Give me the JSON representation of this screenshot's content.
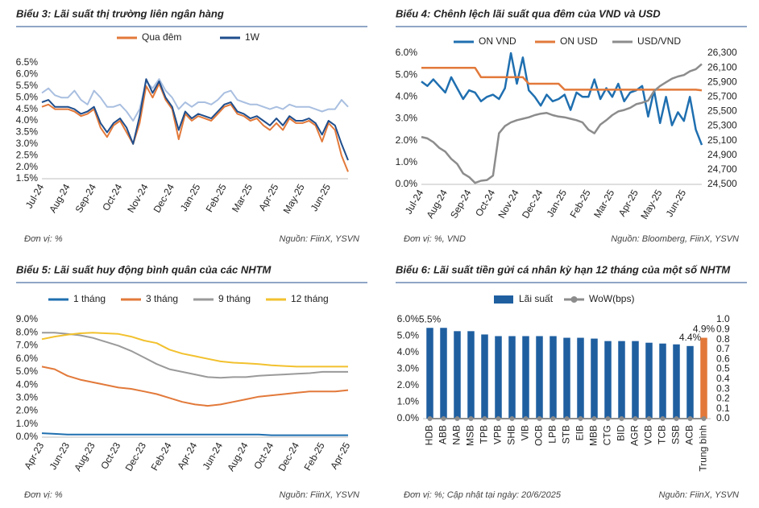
{
  "chart_data": [
    {
      "type": "line",
      "title": "Biểu 3: Lãi suất thị trường liên ngân hàng",
      "unit": "Đơn vị: %",
      "source": "Nguồn: FiinX, YSVN",
      "categories": [
        "Jul-24",
        null,
        null,
        null,
        "Aug-24",
        null,
        null,
        null,
        "Sep-24",
        null,
        null,
        null,
        "Oct-24",
        null,
        null,
        null,
        "Nov-24",
        null,
        null,
        null,
        "Dec-24",
        null,
        null,
        null,
        "Jan-25",
        null,
        null,
        null,
        "Feb-25",
        null,
        null,
        null,
        "Mar-25",
        null,
        null,
        null,
        "Apr-25",
        null,
        null,
        null,
        "May-25",
        null,
        null,
        null,
        "Jun-25",
        null,
        null,
        null
      ],
      "series": [
        {
          "color": "#a9bfe0",
          "values": [
            5.2,
            5.4,
            5.1,
            5.0,
            5.0,
            5.3,
            4.9,
            4.7,
            5.3,
            5.0,
            4.6,
            4.6,
            4.7,
            4.4,
            4.0,
            4.5,
            5.7,
            5.4,
            5.8,
            5.3,
            5.0,
            4.5,
            4.8,
            4.6,
            4.8,
            4.8,
            4.7,
            4.9,
            5.2,
            5.3,
            4.9,
            4.8,
            4.7,
            4.7,
            4.6,
            4.5,
            4.6,
            4.5,
            4.7,
            4.6,
            4.6,
            4.6,
            4.5,
            4.4,
            4.5,
            4.5,
            4.9,
            4.6
          ]
        },
        {
          "name": "Qua đêm",
          "color": "#e2793a",
          "values": [
            4.6,
            4.7,
            4.5,
            4.5,
            4.5,
            4.4,
            4.2,
            4.3,
            4.5,
            3.7,
            3.3,
            3.8,
            4.0,
            3.5,
            3.0,
            3.9,
            5.5,
            5.0,
            5.6,
            4.9,
            4.5,
            3.2,
            4.3,
            4.0,
            4.2,
            4.1,
            4.0,
            4.3,
            4.6,
            4.7,
            4.3,
            4.2,
            4.0,
            4.1,
            3.8,
            3.6,
            3.9,
            3.6,
            4.1,
            3.9,
            3.9,
            4.0,
            3.8,
            3.1,
            3.9,
            3.6,
            2.5,
            1.8
          ]
        },
        {
          "name": "1W",
          "color": "#1f4e8c",
          "values": [
            4.8,
            4.9,
            4.6,
            4.6,
            4.6,
            4.5,
            4.3,
            4.4,
            4.6,
            3.9,
            3.5,
            3.9,
            4.1,
            3.7,
            3.0,
            4.2,
            5.8,
            5.2,
            5.7,
            5.0,
            4.6,
            3.6,
            4.4,
            4.1,
            4.3,
            4.2,
            4.1,
            4.4,
            4.7,
            4.8,
            4.4,
            4.3,
            4.1,
            4.2,
            4.0,
            3.8,
            4.1,
            3.8,
            4.2,
            4.0,
            4.0,
            4.1,
            3.9,
            3.4,
            4.0,
            3.8,
            3.0,
            2.3
          ]
        }
      ],
      "ylim": [
        1.5,
        6.5
      ],
      "yticks": [
        {
          "value": 1.5,
          "label": "1.5%"
        },
        {
          "value": 2,
          "label": "2.0%"
        },
        {
          "value": 2.5,
          "label": "2.5%"
        },
        {
          "value": 3,
          "label": "3.0%"
        },
        {
          "value": 3.5,
          "label": "3.5%"
        },
        {
          "value": 4,
          "label": "4.0%"
        },
        {
          "value": 4.5,
          "label": "4.5%"
        },
        {
          "value": 5,
          "label": "5.0%"
        },
        {
          "value": 5.5,
          "label": "5.5%"
        },
        {
          "value": 6,
          "label": "6.0%"
        },
        {
          "value": 6.5,
          "label": "6.5%"
        }
      ]
    },
    {
      "type": "line",
      "title": "Biểu 4: Chênh lệch lãi suất qua đêm của VND và USD",
      "unit": "Đơn vị: %, VND",
      "source": "Nguồn: Bloomberg, FiinX, YSVN",
      "categories": [
        "Jul-24",
        null,
        null,
        null,
        "Aug-24",
        null,
        null,
        null,
        "Sep-24",
        null,
        null,
        null,
        "Oct-24",
        null,
        null,
        null,
        "Nov-24",
        null,
        null,
        null,
        "Dec-24",
        null,
        null,
        null,
        "Jan-25",
        null,
        null,
        null,
        "Feb-25",
        null,
        null,
        null,
        "Mar-25",
        null,
        null,
        null,
        "Apr-25",
        null,
        null,
        null,
        "May-25",
        null,
        null,
        null,
        "Jun-25",
        null,
        null,
        null
      ],
      "series": [
        {
          "name": "ON VND",
          "color": "#1f6fb0",
          "values": [
            4.7,
            4.5,
            4.8,
            4.5,
            4.2,
            4.9,
            4.4,
            3.9,
            4.3,
            4.2,
            3.8,
            4.0,
            4.1,
            3.9,
            4.4,
            6.0,
            4.6,
            5.8,
            4.3,
            4.0,
            3.6,
            4.1,
            3.8,
            3.9,
            4.1,
            3.4,
            4.2,
            4.0,
            4.0,
            4.8,
            3.9,
            4.4,
            4.0,
            4.6,
            3.8,
            4.2,
            4.3,
            4.5,
            3.1,
            4.3,
            2.8,
            4.0,
            2.7,
            3.3,
            2.9,
            4.0,
            2.5,
            1.8
          ]
        },
        {
          "name": "ON USD",
          "color": "#e2793a",
          "values": [
            5.33,
            5.33,
            5.33,
            5.33,
            5.33,
            5.33,
            5.33,
            5.33,
            5.33,
            5.33,
            4.9,
            4.9,
            4.9,
            4.9,
            4.9,
            4.9,
            4.9,
            4.9,
            4.6,
            4.6,
            4.6,
            4.6,
            4.6,
            4.6,
            4.33,
            4.33,
            4.33,
            4.33,
            4.33,
            4.33,
            4.33,
            4.33,
            4.33,
            4.33,
            4.33,
            4.33,
            4.33,
            4.33,
            4.33,
            4.33,
            4.33,
            4.33,
            4.33,
            4.33,
            4.33,
            4.33,
            4.33,
            4.3
          ]
        },
        {
          "name": "USD/VND",
          "color": "#8c8c8c",
          "axis": "y2",
          "values": [
            25150,
            25130,
            25080,
            25000,
            24950,
            24850,
            24780,
            24650,
            24600,
            24520,
            24550,
            24560,
            24620,
            25200,
            25300,
            25350,
            25380,
            25400,
            25420,
            25450,
            25470,
            25480,
            25450,
            25430,
            25420,
            25400,
            25380,
            25350,
            25250,
            25200,
            25320,
            25380,
            25450,
            25500,
            25520,
            25550,
            25600,
            25620,
            25650,
            25780,
            25850,
            25900,
            25950,
            25980,
            26000,
            26050,
            26080,
            26150
          ]
        }
      ],
      "ylim": [
        0,
        6
      ],
      "yticks": [
        {
          "value": 0,
          "label": "0.0%"
        },
        {
          "value": 1,
          "label": "1.0%"
        },
        {
          "value": 2,
          "label": "2.0%"
        },
        {
          "value": 3,
          "label": "3.0%"
        },
        {
          "value": 4,
          "label": "4.0%"
        },
        {
          "value": 5,
          "label": "5.0%"
        },
        {
          "value": 6,
          "label": "6.0%"
        }
      ],
      "y2lim": [
        24500,
        26300
      ],
      "y2ticks": [
        {
          "value": 24500,
          "label": "24,500"
        },
        {
          "value": 24700,
          "label": "24,700"
        },
        {
          "value": 24900,
          "label": "24,900"
        },
        {
          "value": 25100,
          "label": "25,100"
        },
        {
          "value": 25300,
          "label": "25,300"
        },
        {
          "value": 25500,
          "label": "25,500"
        },
        {
          "value": 25700,
          "label": "25,700"
        },
        {
          "value": 25900,
          "label": "25,900"
        },
        {
          "value": 26100,
          "label": "26,100"
        },
        {
          "value": 26300,
          "label": "26,300"
        }
      ]
    },
    {
      "type": "line",
      "title": "Biểu 5: Lãi suất huy động bình quân của các NHTM",
      "unit": "Đơn vị: %",
      "source": "Nguồn: FiinX, YSVN",
      "categories": [
        "Apr-23",
        null,
        "Jun-23",
        null,
        "Aug-23",
        null,
        "Oct-23",
        null,
        "Dec-23",
        null,
        "Feb-24",
        null,
        "Apr-24",
        null,
        "Jun-24",
        null,
        "Aug-24",
        null,
        "Oct-24",
        null,
        "Dec-24",
        null,
        "Feb-25",
        null,
        "Apr-25"
      ],
      "series": [
        {
          "name": "1 tháng",
          "color": "#1f6fb0",
          "values": [
            0.3,
            0.25,
            0.2,
            0.2,
            0.2,
            0.2,
            0.2,
            0.2,
            0.2,
            0.2,
            0.2,
            0.2,
            0.2,
            0.2,
            0.2,
            0.2,
            0.2,
            0.2,
            0.15,
            0.15,
            0.15,
            0.15,
            0.15,
            0.15,
            0.15
          ]
        },
        {
          "name": "3 tháng",
          "color": "#e2793a",
          "values": [
            5.4,
            5.2,
            4.7,
            4.4,
            4.2,
            4.0,
            3.8,
            3.7,
            3.5,
            3.3,
            3.0,
            2.7,
            2.5,
            2.4,
            2.5,
            2.7,
            2.9,
            3.1,
            3.2,
            3.3,
            3.4,
            3.5,
            3.5,
            3.5,
            3.6
          ]
        },
        {
          "name": "9 tháng",
          "color": "#9a9a9a",
          "values": [
            8.0,
            8.0,
            7.9,
            7.8,
            7.6,
            7.3,
            7.0,
            6.6,
            6.1,
            5.6,
            5.2,
            5.0,
            4.8,
            4.6,
            4.55,
            4.6,
            4.6,
            4.7,
            4.75,
            4.8,
            4.85,
            4.9,
            5.0,
            5.0,
            5.0
          ]
        },
        {
          "name": "12 tháng",
          "color": "#f2c12e",
          "values": [
            7.5,
            7.7,
            7.85,
            7.95,
            8.0,
            7.95,
            7.9,
            7.7,
            7.4,
            7.2,
            6.7,
            6.4,
            6.2,
            6.0,
            5.8,
            5.7,
            5.65,
            5.6,
            5.5,
            5.45,
            5.4,
            5.4,
            5.4,
            5.4,
            5.4
          ]
        }
      ],
      "ylim": [
        0,
        9
      ],
      "yticks": [
        {
          "value": 0,
          "label": "0.0%"
        },
        {
          "value": 1,
          "label": "1.0%"
        },
        {
          "value": 2,
          "label": "2.0%"
        },
        {
          "value": 3,
          "label": "3.0%"
        },
        {
          "value": 4,
          "label": "4.0%"
        },
        {
          "value": 5,
          "label": "5.0%"
        },
        {
          "value": 6,
          "label": "6.0%"
        },
        {
          "value": 7,
          "label": "7.0%"
        },
        {
          "value": 8,
          "label": "8.0%"
        },
        {
          "value": 9,
          "label": "9.0%"
        }
      ]
    },
    {
      "type": "bar",
      "title": "Biểu 6: Lãi suất tiền gửi cá nhân kỳ hạn 12 tháng của một số NHTM",
      "unit": "Đơn vị: %; Cập nhật tại ngày: 20/6/2025",
      "source": "Nguồn: FiinX, YSVN",
      "categories": [
        "HDB",
        "ABB",
        "NAB",
        "MSB",
        "TPB",
        "VPB",
        "SHB",
        "VIB",
        "OCB",
        "LPB",
        "STB",
        "EIB",
        "MBB",
        "CTG",
        "BID",
        "AGR",
        "VCB",
        "TCB",
        "SSB",
        "ACB",
        "Trung bình"
      ],
      "series": [
        {
          "name": "Lãi suất",
          "color": "#1f5fa0",
          "colors": [
            "#1f5fa0",
            "#1f5fa0",
            "#1f5fa0",
            "#1f5fa0",
            "#1f5fa0",
            "#1f5fa0",
            "#1f5fa0",
            "#1f5fa0",
            "#1f5fa0",
            "#1f5fa0",
            "#1f5fa0",
            "#1f5fa0",
            "#1f5fa0",
            "#1f5fa0",
            "#1f5fa0",
            "#1f5fa0",
            "#1f5fa0",
            "#1f5fa0",
            "#1f5fa0",
            "#1f5fa0",
            "#e2793a"
          ],
          "values": [
            5.5,
            5.5,
            5.3,
            5.3,
            5.1,
            5.0,
            5.0,
            5.0,
            5.0,
            5.0,
            4.9,
            4.9,
            4.85,
            4.7,
            4.7,
            4.7,
            4.6,
            4.55,
            4.5,
            4.4,
            4.9
          ],
          "value_labels": [
            "5.5%",
            null,
            null,
            null,
            null,
            null,
            null,
            null,
            null,
            null,
            null,
            null,
            null,
            null,
            null,
            null,
            null,
            null,
            null,
            "4.4%",
            "4.9%"
          ]
        },
        {
          "name": "WoW(bps)",
          "color": "#8c8c8c",
          "type": "line",
          "axis": "y2",
          "values": [
            0,
            0,
            0,
            0,
            0,
            0,
            0,
            0,
            0,
            0,
            0,
            0,
            0,
            0,
            0,
            0,
            0,
            0,
            0,
            0,
            0
          ]
        }
      ],
      "ylim": [
        0,
        6
      ],
      "yticks": [
        {
          "value": 0,
          "label": "0.0%"
        },
        {
          "value": 1,
          "label": "1.0%"
        },
        {
          "value": 2,
          "label": "2.0%"
        },
        {
          "value": 3,
          "label": "3.0%"
        },
        {
          "value": 4,
          "label": "4.0%"
        },
        {
          "value": 5,
          "label": "5.0%"
        },
        {
          "value": 6,
          "label": "6.0%"
        }
      ],
      "y2lim": [
        0,
        1
      ],
      "y2ticks": [
        {
          "value": 0,
          "label": "0.0"
        },
        {
          "value": 0.1,
          "label": "0.1"
        },
        {
          "value": 0.2,
          "label": "0.2"
        },
        {
          "value": 0.3,
          "label": "0.3"
        },
        {
          "value": 0.4,
          "label": "0.4"
        },
        {
          "value": 0.5,
          "label": "0.5"
        },
        {
          "value": 0.6,
          "label": "0.6"
        },
        {
          "value": 0.7,
          "label": "0.7"
        },
        {
          "value": 0.8,
          "label": "0.8"
        },
        {
          "value": 0.9,
          "label": "0.9"
        },
        {
          "value": 1,
          "label": "1.0"
        }
      ]
    }
  ]
}
